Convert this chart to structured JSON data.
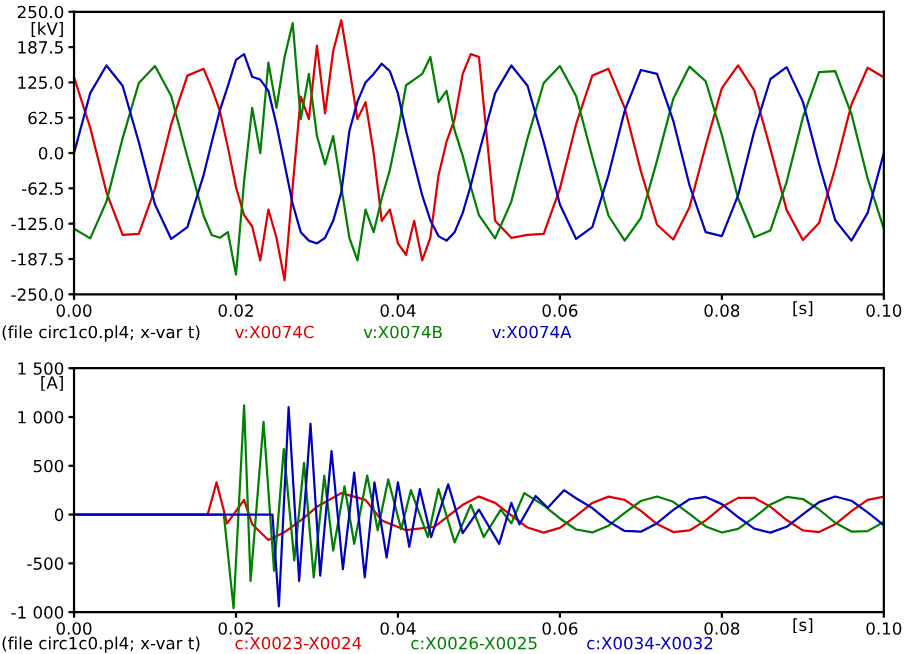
{
  "chart_data": [
    {
      "type": "line",
      "ylabel": "[kV]",
      "xlabel": "[s]",
      "annotations": [
        "(file circ1c0.pl4; x-var t)"
      ],
      "legend": "bottom",
      "grid": false,
      "x": [
        0,
        0.002,
        0.004,
        0.006,
        0.008,
        0.01,
        0.012,
        0.014,
        0.016,
        0.017,
        0.018,
        0.019,
        0.02,
        0.021,
        0.022,
        0.023,
        0.024,
        0.025,
        0.026,
        0.027,
        0.028,
        0.029,
        0.03,
        0.031,
        0.032,
        0.033,
        0.034,
        0.035,
        0.036,
        0.037,
        0.038,
        0.039,
        0.04,
        0.041,
        0.042,
        0.043,
        0.044,
        0.045,
        0.046,
        0.047,
        0.048,
        0.049,
        0.05,
        0.052,
        0.054,
        0.056,
        0.058,
        0.06,
        0.062,
        0.064,
        0.066,
        0.068,
        0.07,
        0.072,
        0.074,
        0.076,
        0.078,
        0.08,
        0.082,
        0.084,
        0.086,
        0.088,
        0.09,
        0.092,
        0.094,
        0.096,
        0.098,
        0.1
      ],
      "series": [
        {
          "name": "v:X0074C",
          "color": "#e00000",
          "values": [
            134,
            45,
            -69,
            -145,
            -143,
            -63,
            51,
            137,
            149,
            115,
            75,
            10,
            -60,
            -110,
            -130,
            -190,
            -100,
            -150,
            -225,
            -60,
            100,
            60,
            190,
            70,
            180,
            235,
            150,
            60,
            90,
            0,
            -120,
            -100,
            -160,
            -180,
            -120,
            -190,
            -150,
            -40,
            20,
            60,
            140,
            175,
            170,
            -120,
            -150,
            -145,
            -143,
            -63,
            51,
            137,
            149,
            80,
            -32,
            -127,
            -153,
            -96,
            13,
            115,
            155,
            111,
            7,
            -101,
            -154,
            -124,
            -26,
            86,
            151,
            134
          ]
        },
        {
          "name": "v:X0074B",
          "color": "#008000",
          "values": [
            -134,
            -151,
            -86,
            26,
            124,
            154,
            101,
            -7,
            -111,
            -145,
            -150,
            -140,
            -215,
            -50,
            80,
            0,
            160,
            80,
            170,
            230,
            60,
            140,
            30,
            -20,
            30,
            -60,
            -150,
            -190,
            -100,
            -140,
            -80,
            -30,
            40,
            120,
            130,
            140,
            170,
            90,
            110,
            40,
            -5,
            -60,
            -110,
            -151,
            -86,
            26,
            124,
            154,
            101,
            -7,
            -111,
            -155,
            -115,
            -13,
            96,
            153,
            127,
            32,
            -80,
            -149,
            -137,
            -51,
            63,
            143,
            145,
            69,
            -45,
            -134
          ]
        },
        {
          "name": "v:X0074A",
          "color": "#0000c0",
          "values": [
            0,
            106,
            155,
            119,
            19,
            -91,
            -152,
            -131,
            -39,
            19,
            75,
            119,
            165,
            175,
            135,
            130,
            110,
            50,
            -20,
            -90,
            -140,
            -155,
            -160,
            -150,
            -120,
            -70,
            39,
            91,
            125,
            140,
            158,
            145,
            105,
            39,
            -19,
            -75,
            -119,
            -147,
            -155,
            -140,
            -106,
            -57,
            0,
            106,
            155,
            119,
            19,
            -91,
            -152,
            -131,
            -39,
            75,
            147,
            140,
            57,
            -57,
            -140,
            -147,
            -75,
            39,
            131,
            152,
            91,
            -19,
            -119,
            -155,
            -106,
            0
          ]
        }
      ],
      "xlim": [
        0,
        0.1
      ],
      "ylim": [
        -250,
        250
      ],
      "xticks": [
        {
          "value": 0,
          "label": "0.00"
        },
        {
          "value": 0.02,
          "label": "0.02"
        },
        {
          "value": 0.04,
          "label": "0.04"
        },
        {
          "value": 0.06,
          "label": "0.06"
        },
        {
          "value": 0.08,
          "label": "0.08"
        },
        {
          "value": 0.1,
          "label": "0.10"
        }
      ],
      "yticks": [
        {
          "value": 250,
          "label": "250.0"
        },
        187.5,
        {
          "value": 125,
          "label": "125.0"
        },
        62.5,
        {
          "value": 0,
          "label": "0.0"
        },
        -62.5,
        {
          "value": -125,
          "label": "-125.0"
        },
        -187.5,
        {
          "value": -250,
          "label": "-250.0"
        }
      ]
    },
    {
      "type": "line",
      "ylabel": "[A]",
      "xlabel": "[s]",
      "annotations": [
        "(file circ1c0.pl4; x-var t)"
      ],
      "legend": "bottom",
      "grid": false,
      "series": [
        {
          "name": "c:X0023-X0024",
          "color": "#e00000",
          "x": [
            0,
            0.0165,
            0.0176,
            0.0189,
            0.021,
            0.022,
            0.024,
            0.026,
            0.028,
            0.03,
            0.033,
            0.036,
            0.038,
            0.041,
            0.0445,
            0.048,
            0.05,
            0.052,
            0.054,
            0.056,
            0.058,
            0.06,
            0.062,
            0.064,
            0.066,
            0.068,
            0.07,
            0.072,
            0.074,
            0.076,
            0.078,
            0.08,
            0.082,
            0.084,
            0.086,
            0.088,
            0.09,
            0.092,
            0.094,
            0.096,
            0.098,
            0.1
          ],
          "values": [
            0,
            0,
            330,
            -90,
            150,
            -100,
            -260,
            -180,
            -60,
            80,
            220,
            150,
            -60,
            -160,
            -125,
            100,
            184,
            120,
            -9,
            -133,
            -185,
            -136,
            -14,
            119,
            184,
            151,
            37,
            -97,
            -179,
            -163,
            -59,
            77,
            171,
            172,
            80,
            -56,
            -162,
            -179,
            -100,
            35,
            150,
            184
          ]
        },
        {
          "name": "c:X0026-X0025",
          "color": "#008000",
          "x": [
            0,
            0.0185,
            0.0197,
            0.021,
            0.0218,
            0.0234,
            0.0247,
            0.0259,
            0.0272,
            0.0284,
            0.0296,
            0.0309,
            0.032,
            0.0334,
            0.0346,
            0.0362,
            0.0375,
            0.0388,
            0.0404,
            0.0416,
            0.0437,
            0.045,
            0.047,
            0.049,
            0.0506,
            0.0527,
            0.054,
            0.0556,
            0.058,
            0.06,
            0.062,
            0.064,
            0.066,
            0.068,
            0.07,
            0.072,
            0.074,
            0.076,
            0.078,
            0.08,
            0.082,
            0.084,
            0.086,
            0.088,
            0.09,
            0.092,
            0.094,
            0.096,
            0.098,
            0.1
          ],
          "values": [
            0,
            0,
            -960,
            1120,
            -680,
            950,
            -575,
            670,
            -470,
            530,
            -645,
            400,
            -370,
            290,
            -300,
            400,
            -160,
            360,
            -150,
            250,
            -230,
            260,
            -285,
            100,
            -230,
            50,
            -90,
            220,
            94,
            -40,
            -153,
            -183,
            -114,
            17,
            139,
            185,
            131,
            6,
            -122,
            -184,
            -146,
            -29,
            104,
            181,
            159,
            52,
            -84,
            -174,
            -170,
            -74
          ]
        },
        {
          "name": "c:X0034-X0032",
          "color": "#0000c0",
          "x": [
            0,
            0.0245,
            0.0253,
            0.0265,
            0.0278,
            0.0292,
            0.0304,
            0.0318,
            0.0332,
            0.0346,
            0.0359,
            0.0371,
            0.0386,
            0.04,
            0.0414,
            0.0427,
            0.0441,
            0.0462,
            0.048,
            0.05,
            0.0525,
            0.054,
            0.055,
            0.057,
            0.0585,
            0.0605,
            0.062,
            0.064,
            0.066,
            0.068,
            0.07,
            0.072,
            0.074,
            0.076,
            0.078,
            0.08,
            0.082,
            0.084,
            0.086,
            0.088,
            0.09,
            0.092,
            0.094,
            0.096,
            0.098,
            0.1
          ],
          "values": [
            0,
            0,
            -940,
            1100,
            -680,
            930,
            -625,
            650,
            -560,
            430,
            -645,
            330,
            -440,
            330,
            -330,
            260,
            -230,
            310,
            -190,
            50,
            -300,
            120,
            -100,
            190,
            70,
            250,
            167,
            67,
            -70,
            -168,
            -175,
            -88,
            48,
            157,
            181,
            107,
            -25,
            -144,
            -185,
            -125,
            2,
            128,
            185,
            142,
            22,
            -110
          ]
        }
      ],
      "xlim": [
        0,
        0.1
      ],
      "ylim": [
        -1000,
        1500
      ],
      "xticks": [
        {
          "value": 0,
          "label": "0.00"
        },
        {
          "value": 0.02,
          "label": "0.02"
        },
        {
          "value": 0.04,
          "label": "0.04"
        },
        {
          "value": 0.06,
          "label": "0.06"
        },
        {
          "value": 0.08,
          "label": "0.08"
        },
        {
          "value": 0.1,
          "label": "0.10"
        }
      ],
      "yticks": [
        {
          "value": 1500,
          "label": "1 500"
        },
        {
          "value": 1000,
          "label": "1 000"
        },
        500,
        0,
        -500,
        {
          "value": -1000,
          "label": "-1 000"
        }
      ]
    }
  ]
}
